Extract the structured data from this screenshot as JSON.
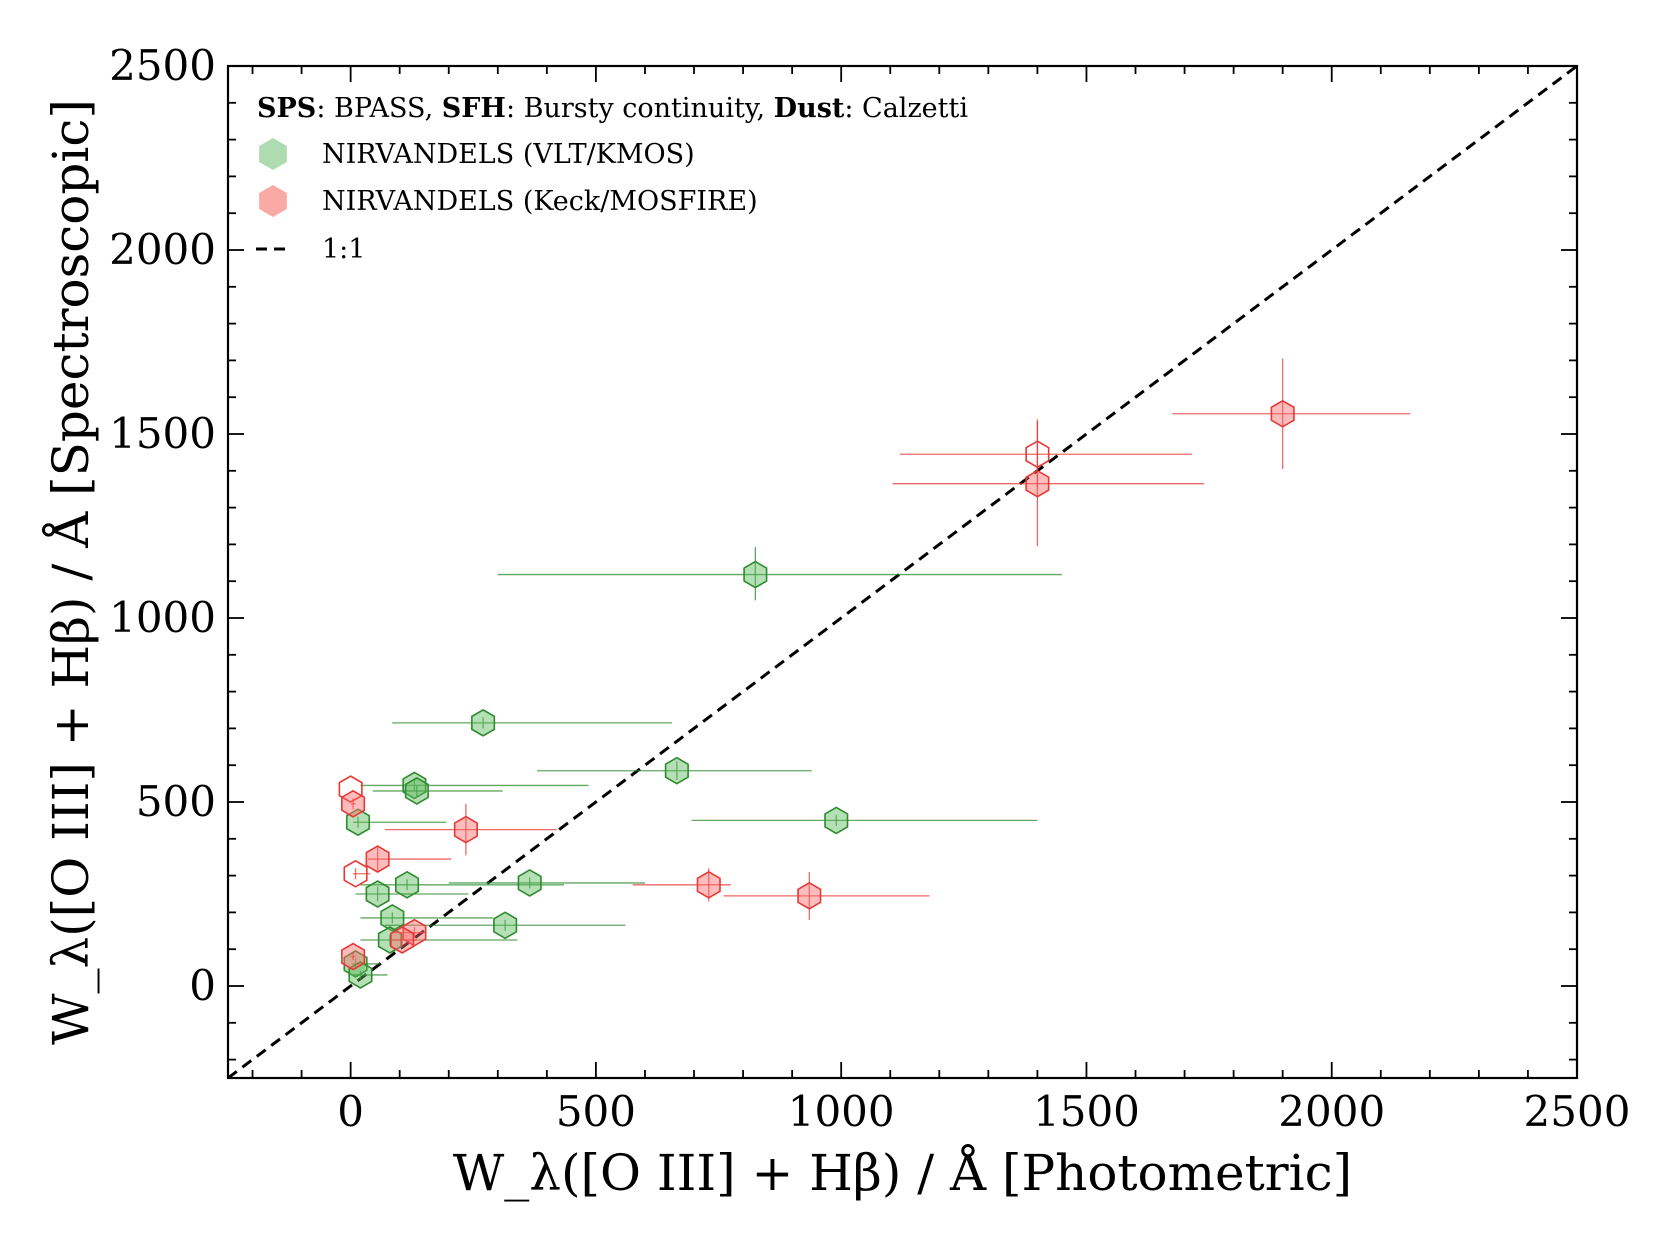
{
  "chart_data": {
    "type": "scatter",
    "xlabel": "W_λ([O III] + Hβ) / Å  [Photometric]",
    "ylabel": "W_λ([O III] + Hβ) / Å  [Spectroscopic]",
    "xlim": [
      -250,
      2500
    ],
    "ylim": [
      -250,
      2500
    ],
    "major_ticks": [
      0,
      500,
      1000,
      1500,
      2000,
      2500
    ],
    "minor_tick_step": 100,
    "x_tick_labels": [
      "0",
      "500",
      "1000",
      "1500",
      "2000",
      "2500"
    ],
    "y_tick_labels": [
      "0",
      "500",
      "1000",
      "1500",
      "2000",
      "2500"
    ],
    "legend": {
      "position": "top-left",
      "header": [
        {
          "text": "SPS",
          "bold": true
        },
        {
          "text": ": BPASS, ",
          "bold": false
        },
        {
          "text": "SFH",
          "bold": true
        },
        {
          "text": ": Bursty continuity, ",
          "bold": false
        },
        {
          "text": "Dust",
          "bold": true
        },
        {
          "text": ": Calzetti",
          "bold": false
        }
      ],
      "entries": [
        {
          "label": "NIRVANDELS (VLT/KMOS)",
          "marker": "hexagon",
          "color": "#4caf50"
        },
        {
          "label": "NIRVANDELS (Keck/MOSFIRE)",
          "marker": "hexagon",
          "color": "#f44336"
        },
        {
          "label": "1:1",
          "marker": "dashed-line",
          "color": "#000000"
        }
      ]
    },
    "reference_line": {
      "label": "1:1",
      "x": [
        -250,
        2500
      ],
      "y": [
        -250,
        2500
      ]
    },
    "series": [
      {
        "name": "NIRVANDELS (VLT/KMOS)",
        "color": "#2e8b2e",
        "fill": "#5cb85c",
        "points": [
          {
            "x": 825,
            "y": 1118,
            "xerr": [
              525,
              625
            ],
            "yerr": [
              70,
              75
            ],
            "filled": true
          },
          {
            "x": 270,
            "y": 715,
            "xerr": [
              185,
              385
            ],
            "yerr": [
              15,
              15
            ],
            "filled": true
          },
          {
            "x": 665,
            "y": 585,
            "xerr": [
              285,
              275
            ],
            "yerr": [
              25,
              25
            ],
            "filled": true
          },
          {
            "x": 130,
            "y": 545,
            "xerr": [
              110,
              355
            ],
            "yerr": [
              15,
              15
            ],
            "filled": true
          },
          {
            "x": 135,
            "y": 530,
            "xerr": [
              90,
              175
            ],
            "yerr": [
              15,
              15
            ],
            "filled": true
          },
          {
            "x": 15,
            "y": 445,
            "xerr": [
              10,
              180
            ],
            "yerr": [
              15,
              15
            ],
            "filled": true
          },
          {
            "x": 990,
            "y": 450,
            "xerr": [
              295,
              410
            ],
            "yerr": [
              15,
              15
            ],
            "filled": true
          },
          {
            "x": 115,
            "y": 275,
            "xerr": [
              95,
              320
            ],
            "yerr": [
              15,
              15
            ],
            "filled": true
          },
          {
            "x": 365,
            "y": 280,
            "xerr": [
              165,
              235
            ],
            "yerr": [
              15,
              15
            ],
            "filled": true
          },
          {
            "x": 55,
            "y": 250,
            "xerr": [
              45,
              185
            ],
            "yerr": [
              20,
              20
            ],
            "filled": true
          },
          {
            "x": 85,
            "y": 185,
            "xerr": [
              65,
              205
            ],
            "yerr": [
              15,
              15
            ],
            "filled": true
          },
          {
            "x": 315,
            "y": 165,
            "xerr": [
              245,
              245
            ],
            "yerr": [
              15,
              15
            ],
            "filled": true
          },
          {
            "x": 80,
            "y": 125,
            "xerr": [
              60,
              260
            ],
            "yerr": [
              15,
              15
            ],
            "filled": true
          },
          {
            "x": 10,
            "y": 60,
            "xerr": [
              8,
              50
            ],
            "yerr": [
              15,
              15
            ],
            "filled": true
          },
          {
            "x": 20,
            "y": 30,
            "xerr": [
              15,
              55
            ],
            "yerr": [
              10,
              10
            ],
            "filled": true
          }
        ]
      },
      {
        "name": "NIRVANDELS (Keck/MOSFIRE)",
        "color": "#e53935",
        "fill": "#ff6b6b",
        "points": [
          {
            "x": 1900,
            "y": 1555,
            "xerr": [
              225,
              260
            ],
            "yerr": [
              150,
              150
            ],
            "filled": true
          },
          {
            "x": 1400,
            "y": 1445,
            "xerr": [
              280,
              315
            ],
            "yerr": [
              95,
              95
            ],
            "filled": false
          },
          {
            "x": 1400,
            "y": 1365,
            "xerr": [
              295,
              340
            ],
            "yerr": [
              170,
              170
            ],
            "filled": true
          },
          {
            "x": 0,
            "y": 535,
            "xerr": [
              0,
              0
            ],
            "yerr": [
              0,
              0
            ],
            "filled": false
          },
          {
            "x": 5,
            "y": 495,
            "xerr": [
              5,
              5
            ],
            "yerr": [
              15,
              15
            ],
            "filled": true
          },
          {
            "x": 235,
            "y": 425,
            "xerr": [
              165,
              185
            ],
            "yerr": [
              70,
              70
            ],
            "filled": true
          },
          {
            "x": 55,
            "y": 345,
            "xerr": [
              20,
              150
            ],
            "yerr": [
              35,
              35
            ],
            "filled": true
          },
          {
            "x": 10,
            "y": 305,
            "xerr": [
              5,
              30
            ],
            "yerr": [
              15,
              15
            ],
            "filled": false
          },
          {
            "x": 730,
            "y": 275,
            "xerr": [
              155,
              45
            ],
            "yerr": [
              45,
              45
            ],
            "filled": true
          },
          {
            "x": 935,
            "y": 245,
            "xerr": [
              175,
              245
            ],
            "yerr": [
              65,
              65
            ],
            "filled": true
          },
          {
            "x": 130,
            "y": 145,
            "xerr": [
              40,
              25
            ],
            "yerr": [
              15,
              15
            ],
            "filled": true
          },
          {
            "x": 105,
            "y": 125,
            "xerr": [
              20,
              30
            ],
            "yerr": [
              15,
              15
            ],
            "filled": true
          },
          {
            "x": 5,
            "y": 80,
            "xerr": [
              5,
              5
            ],
            "yerr": [
              10,
              10
            ],
            "filled": true
          }
        ]
      }
    ]
  }
}
